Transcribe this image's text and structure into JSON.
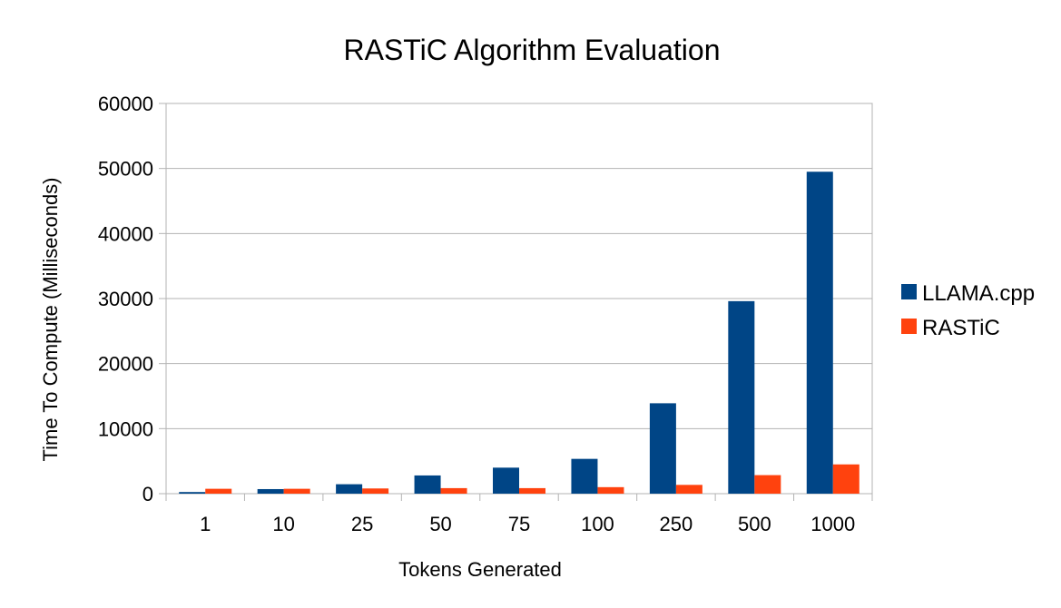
{
  "chart_data": {
    "type": "bar",
    "title": "RASTiC Algorithm Evaluation",
    "xlabel": "Tokens Generated",
    "ylabel": "Time To Compute (Milliseconds)",
    "categories": [
      "1",
      "10",
      "25",
      "50",
      "75",
      "100",
      "250",
      "500",
      "1000"
    ],
    "series": [
      {
        "name": "LLAMA.cpp",
        "color": "#004586",
        "values": [
          250,
          700,
          1450,
          2800,
          4000,
          5350,
          13900,
          29600,
          49500
        ]
      },
      {
        "name": "RASTiC",
        "color": "#ff420e",
        "values": [
          750,
          750,
          800,
          850,
          850,
          1000,
          1350,
          2850,
          4500
        ]
      }
    ],
    "ylim": [
      0,
      60000
    ],
    "yticks": [
      0,
      10000,
      20000,
      30000,
      40000,
      50000,
      60000
    ],
    "ytick_labels": [
      "0",
      "10000",
      "20000",
      "30000",
      "40000",
      "50000",
      "60000"
    ],
    "grid": true,
    "legend_position": "right"
  }
}
